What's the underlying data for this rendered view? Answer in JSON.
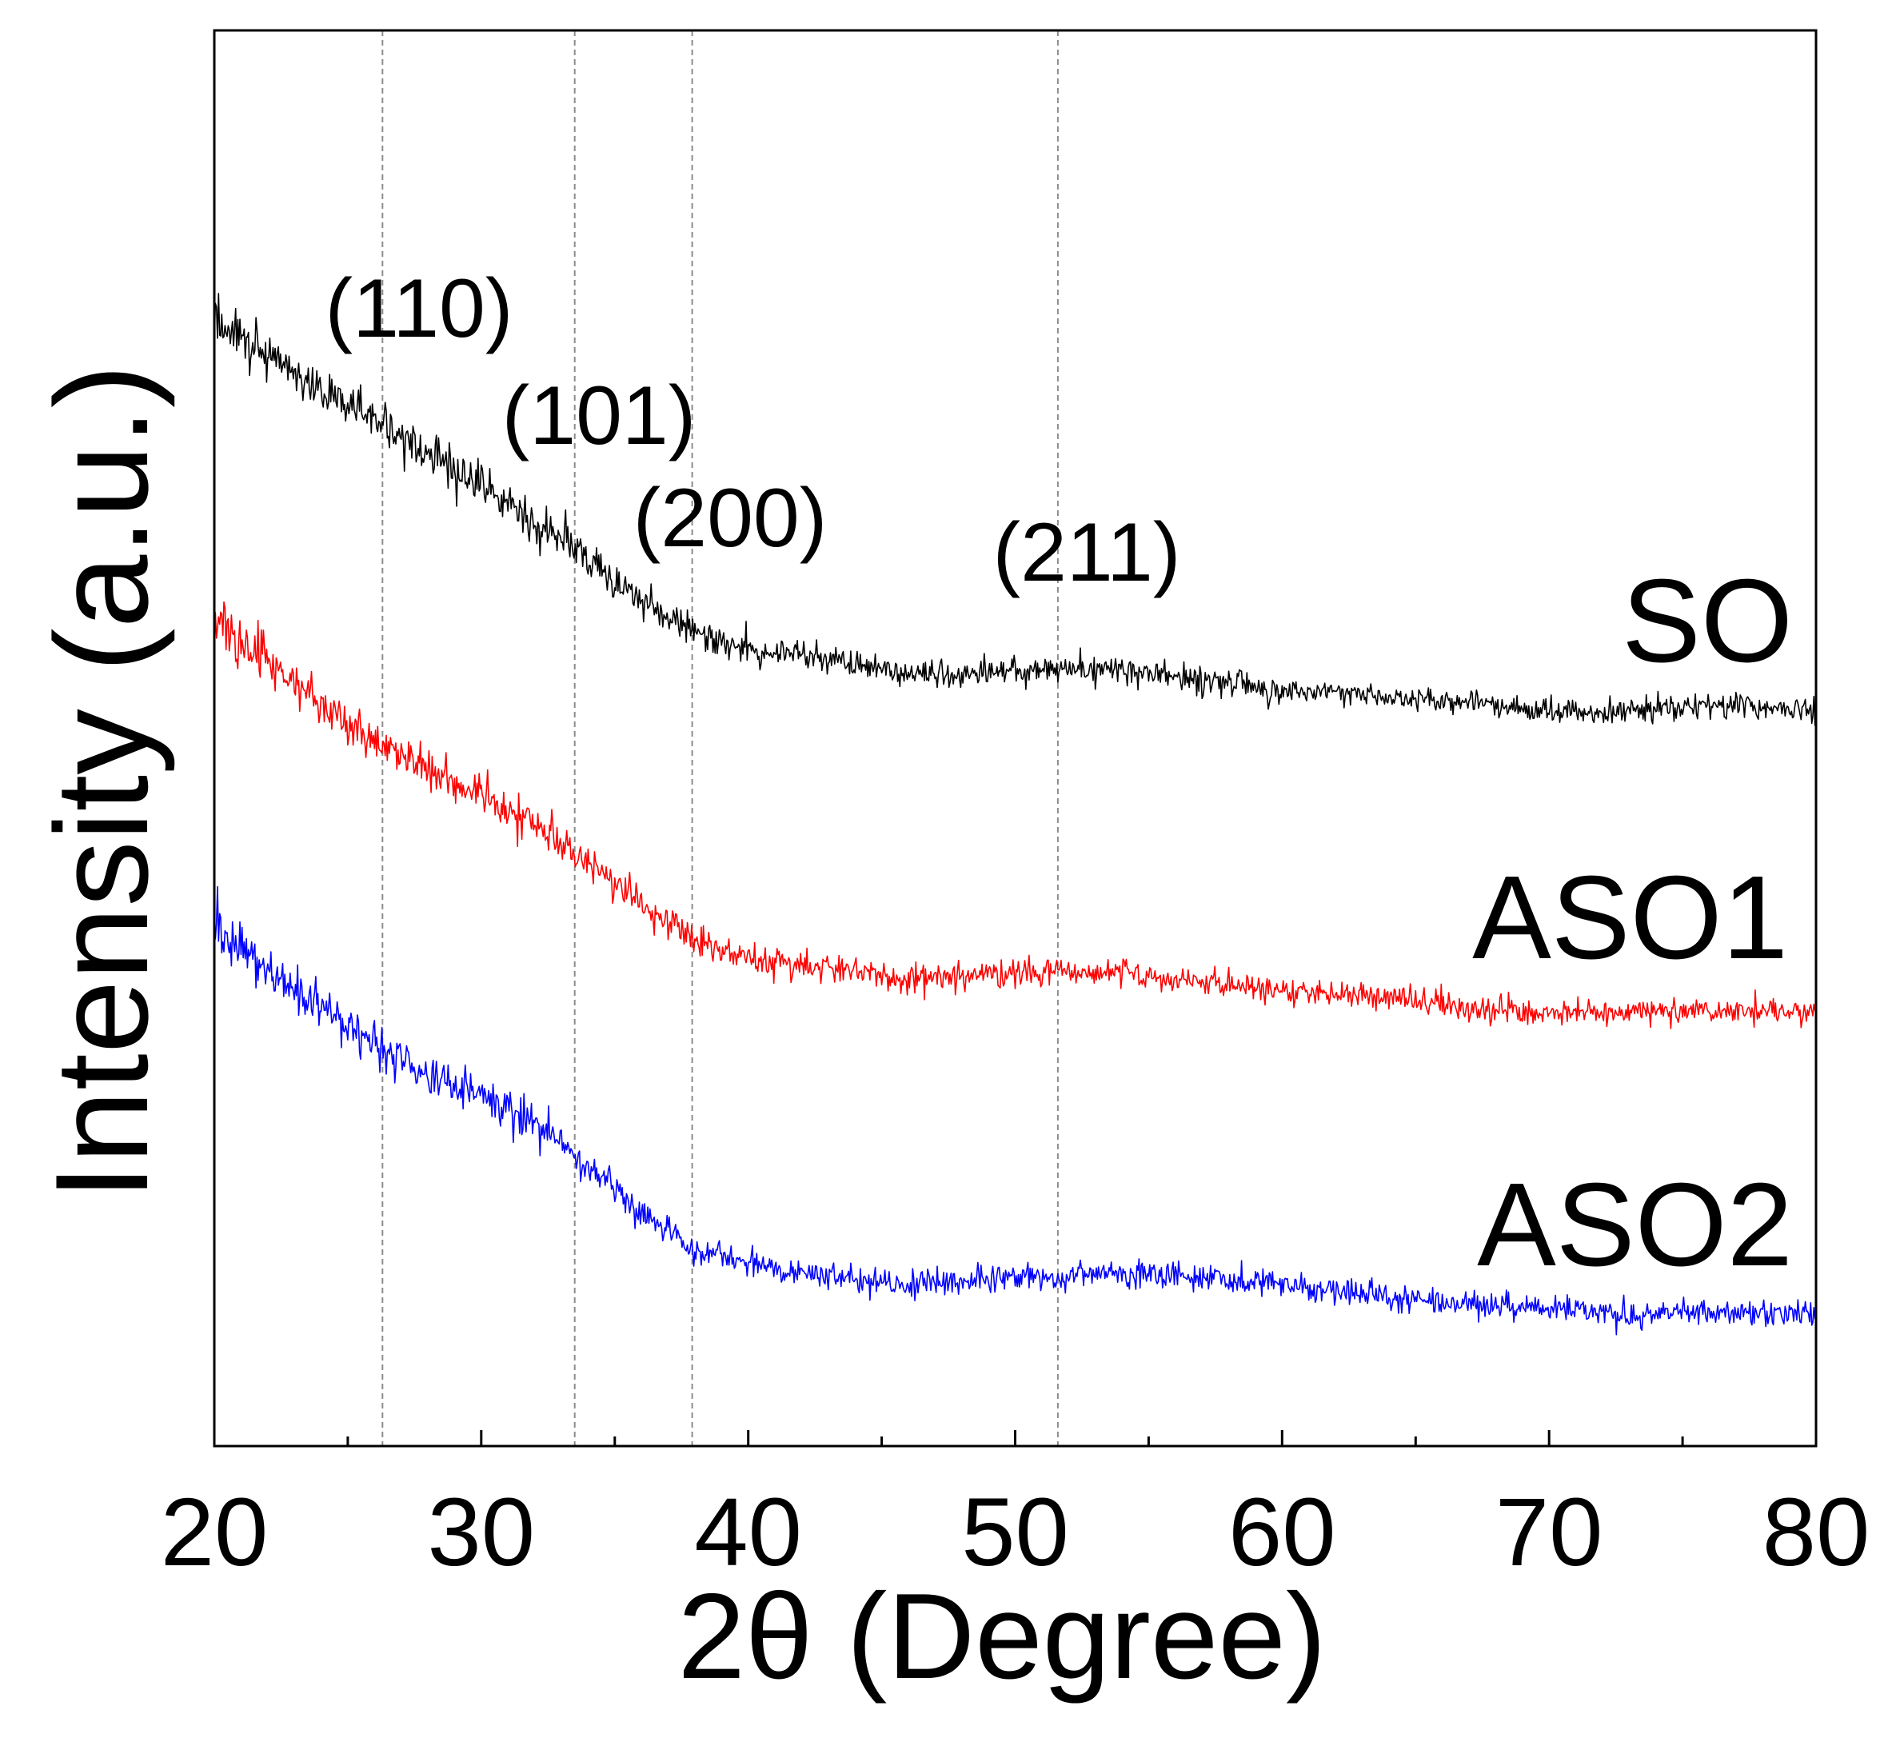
{
  "chart_data": {
    "type": "line",
    "title": "",
    "xlabel": "2θ (Degree)",
    "ylabel": "Intensity (a.u.)",
    "xlim": [
      20,
      80
    ],
    "ylim": [
      0,
      100
    ],
    "x_ticks": [
      20,
      30,
      40,
      50,
      60,
      70,
      80
    ],
    "x_minor_ticks": [
      25,
      35,
      45,
      55,
      65,
      75
    ],
    "grid": false,
    "x": [
      20,
      22,
      24,
      26,
      28,
      30,
      32,
      34,
      36,
      38,
      40,
      42,
      44,
      46,
      48,
      50,
      52,
      54,
      56,
      58,
      60,
      62,
      64,
      66,
      68,
      70,
      72,
      74,
      76,
      78,
      80
    ],
    "series": [
      {
        "name": "SO",
        "color": "#000000",
        "values": [
          79.5,
          77.3,
          74.7,
          72.6,
          70.0,
          67.9,
          65.3,
          62.7,
          59.7,
          57.6,
          56.3,
          55.9,
          55.2,
          54.6,
          54.6,
          54.8,
          55.0,
          54.8,
          54.3,
          53.8,
          53.5,
          53.2,
          52.9,
          52.7,
          52.4,
          52.0,
          51.9,
          52.1,
          52.3,
          52.2,
          52.0
        ]
      },
      {
        "name": "ASO1",
        "color": "#ff0000",
        "values": [
          58.4,
          55.4,
          52.4,
          49.9,
          47.7,
          46.0,
          43.9,
          41.3,
          38.3,
          35.7,
          34.4,
          34.0,
          33.6,
          32.9,
          33.2,
          33.4,
          33.6,
          33.3,
          32.9,
          32.6,
          32.3,
          32.0,
          31.7,
          31.2,
          30.8,
          30.6,
          30.6,
          30.8,
          30.8,
          30.8,
          30.6
        ]
      },
      {
        "name": "ASO2",
        "color": "#0000ff",
        "values": [
          36.6,
          33.6,
          31.0,
          28.4,
          26.3,
          25.0,
          22.9,
          19.9,
          16.5,
          13.9,
          12.9,
          12.3,
          11.7,
          11.5,
          11.7,
          11.9,
          12.0,
          12.2,
          12.0,
          11.7,
          11.5,
          11.1,
          10.6,
          10.2,
          9.9,
          9.6,
          9.4,
          9.3,
          9.4,
          9.4,
          9.3
        ]
      }
    ],
    "reference_lines": [
      {
        "label": "(110)",
        "x": 26.3
      },
      {
        "label": "(101)",
        "x": 33.5
      },
      {
        "label": "(200)",
        "x": 37.9
      },
      {
        "label": "(211)",
        "x": 51.6
      }
    ],
    "reference_line_color": "#8c8c8c",
    "axis_color": "#000000"
  }
}
